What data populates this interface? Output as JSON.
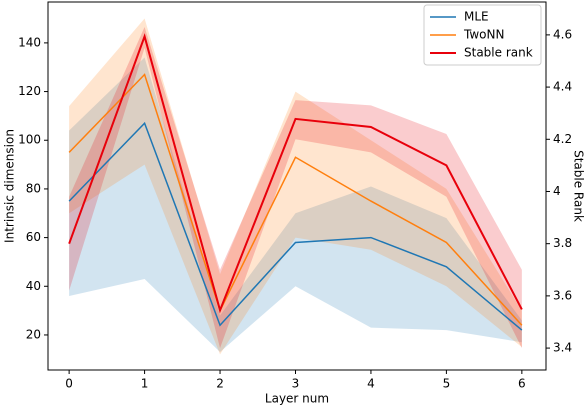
{
  "chart_data": {
    "type": "line",
    "x_label": "Layer num",
    "y_label": "Intrinsic dimension",
    "y2_label": "Stable Rank",
    "x": [
      0,
      1,
      2,
      3,
      4,
      5,
      6
    ],
    "xlim": [
      -0.28,
      6.32
    ],
    "xticks": [
      0,
      1,
      2,
      3,
      4,
      5,
      6
    ],
    "ylim": [
      5.6,
      156.8
    ],
    "yticks": [
      20,
      40,
      60,
      80,
      100,
      120,
      140
    ],
    "y2lim": [
      3.316,
      4.726
    ],
    "y2ticks": [
      3.4,
      3.6,
      3.8,
      4.0,
      4.2,
      4.4,
      4.6
    ],
    "legend": "upper right",
    "series": [
      {
        "name": "MLE",
        "color": "#1f77b4",
        "values": [
          75,
          107,
          24,
          58,
          60,
          48,
          22
        ],
        "lower": [
          36,
          43,
          13,
          40,
          23,
          22,
          17
        ],
        "upper": [
          104,
          134,
          28,
          70,
          81,
          68,
          26
        ]
      },
      {
        "name": "TwoNN",
        "color": "#ff7f0e",
        "values": [
          95,
          127,
          30,
          93,
          75,
          58,
          24
        ],
        "lower": [
          70,
          90,
          12,
          60,
          55,
          40,
          15
        ],
        "upper": [
          114,
          150,
          45,
          120,
          100,
          80,
          30
        ]
      },
      {
        "name": "Stable rank",
        "color": "#e8000b",
        "axis": "y2",
        "values": [
          3.8,
          4.594,
          3.545,
          4.278,
          4.247,
          4.1,
          3.548
        ],
        "lower": [
          3.62,
          4.55,
          3.4,
          4.2,
          4.15,
          3.98,
          3.4
        ],
        "upper": [
          3.98,
          4.63,
          3.7,
          4.35,
          4.33,
          4.22,
          3.7
        ]
      }
    ]
  }
}
